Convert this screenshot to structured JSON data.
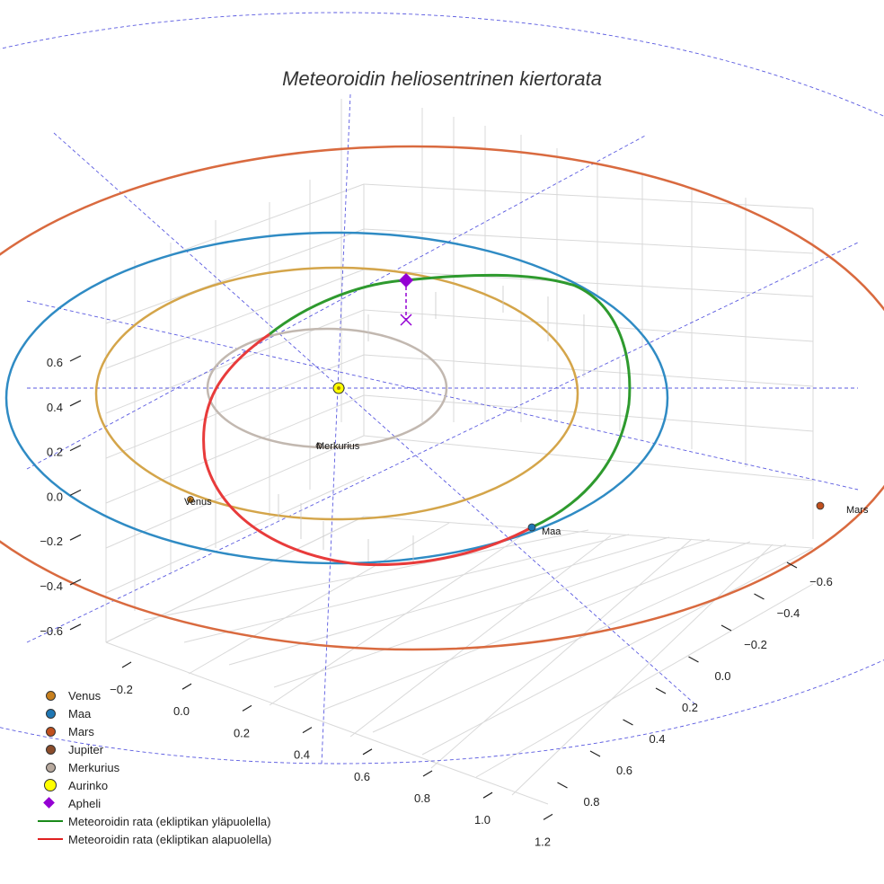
{
  "chart_data": {
    "type": "3d-line",
    "title": "Meteoroidin heliosentrinen kiertorata",
    "xlabel": "",
    "ylabel": "",
    "zlabel": "",
    "x_ticks": [
      "−0.2",
      "0.0",
      "0.2",
      "0.4",
      "0.6",
      "0.8",
      "1.0",
      "1.2"
    ],
    "y_ticks": [
      "−0.6",
      "−0.4",
      "−0.2",
      "0.0",
      "0.2",
      "0.4",
      "0.6",
      "0.8"
    ],
    "z_ticks": [
      "0.6",
      "0.4",
      "0.2",
      "0.0",
      "−0.2",
      "−0.4",
      "−0.6"
    ],
    "grid": true,
    "legend_position": "bottom-left",
    "planets": [
      {
        "name": "Merkurius",
        "orbit_radius_au": 0.39,
        "color": "#bfb5ae"
      },
      {
        "name": "Venus",
        "orbit_radius_au": 0.72,
        "color": "#d4a043"
      },
      {
        "name": "Maa",
        "orbit_radius_au": 1.0,
        "color": "#2f8bc4"
      },
      {
        "name": "Mars",
        "orbit_radius_au": 1.52,
        "color": "#d96a3f"
      }
    ],
    "sun_label": "Aurinko",
    "aphelion_label": "Apheli",
    "series": [
      {
        "name": "Meteoroidin rata (ekliptikan yläpuolella)",
        "color": "#2e9a2e"
      },
      {
        "name": "Meteoroidin rata (ekliptikan alapuolella)",
        "color": "#e83b3b"
      }
    ]
  },
  "legend": [
    {
      "label": "Venus",
      "symbol": "dot",
      "color": "#c8801e"
    },
    {
      "label": "Maa",
      "symbol": "dot",
      "color": "#1f77b4"
    },
    {
      "label": "Mars",
      "symbol": "dot",
      "color": "#c0501e"
    },
    {
      "label": "Jupiter",
      "symbol": "dot",
      "color": "#8b4c2b"
    },
    {
      "label": "Merkurius",
      "symbol": "dot",
      "color": "#b7a99e"
    },
    {
      "label": "Aurinko",
      "symbol": "bigdot",
      "color": "#ffff00"
    },
    {
      "label": "Apheli",
      "symbol": "diamond",
      "color": "#9400d3"
    },
    {
      "label": "Meteoroidin rata (ekliptikan yläpuolella)",
      "symbol": "line",
      "color": "#1a8a1a"
    },
    {
      "label": "Meteoroidin rata (ekliptikan alapuolella)",
      "symbol": "line",
      "color": "#e02020"
    }
  ]
}
